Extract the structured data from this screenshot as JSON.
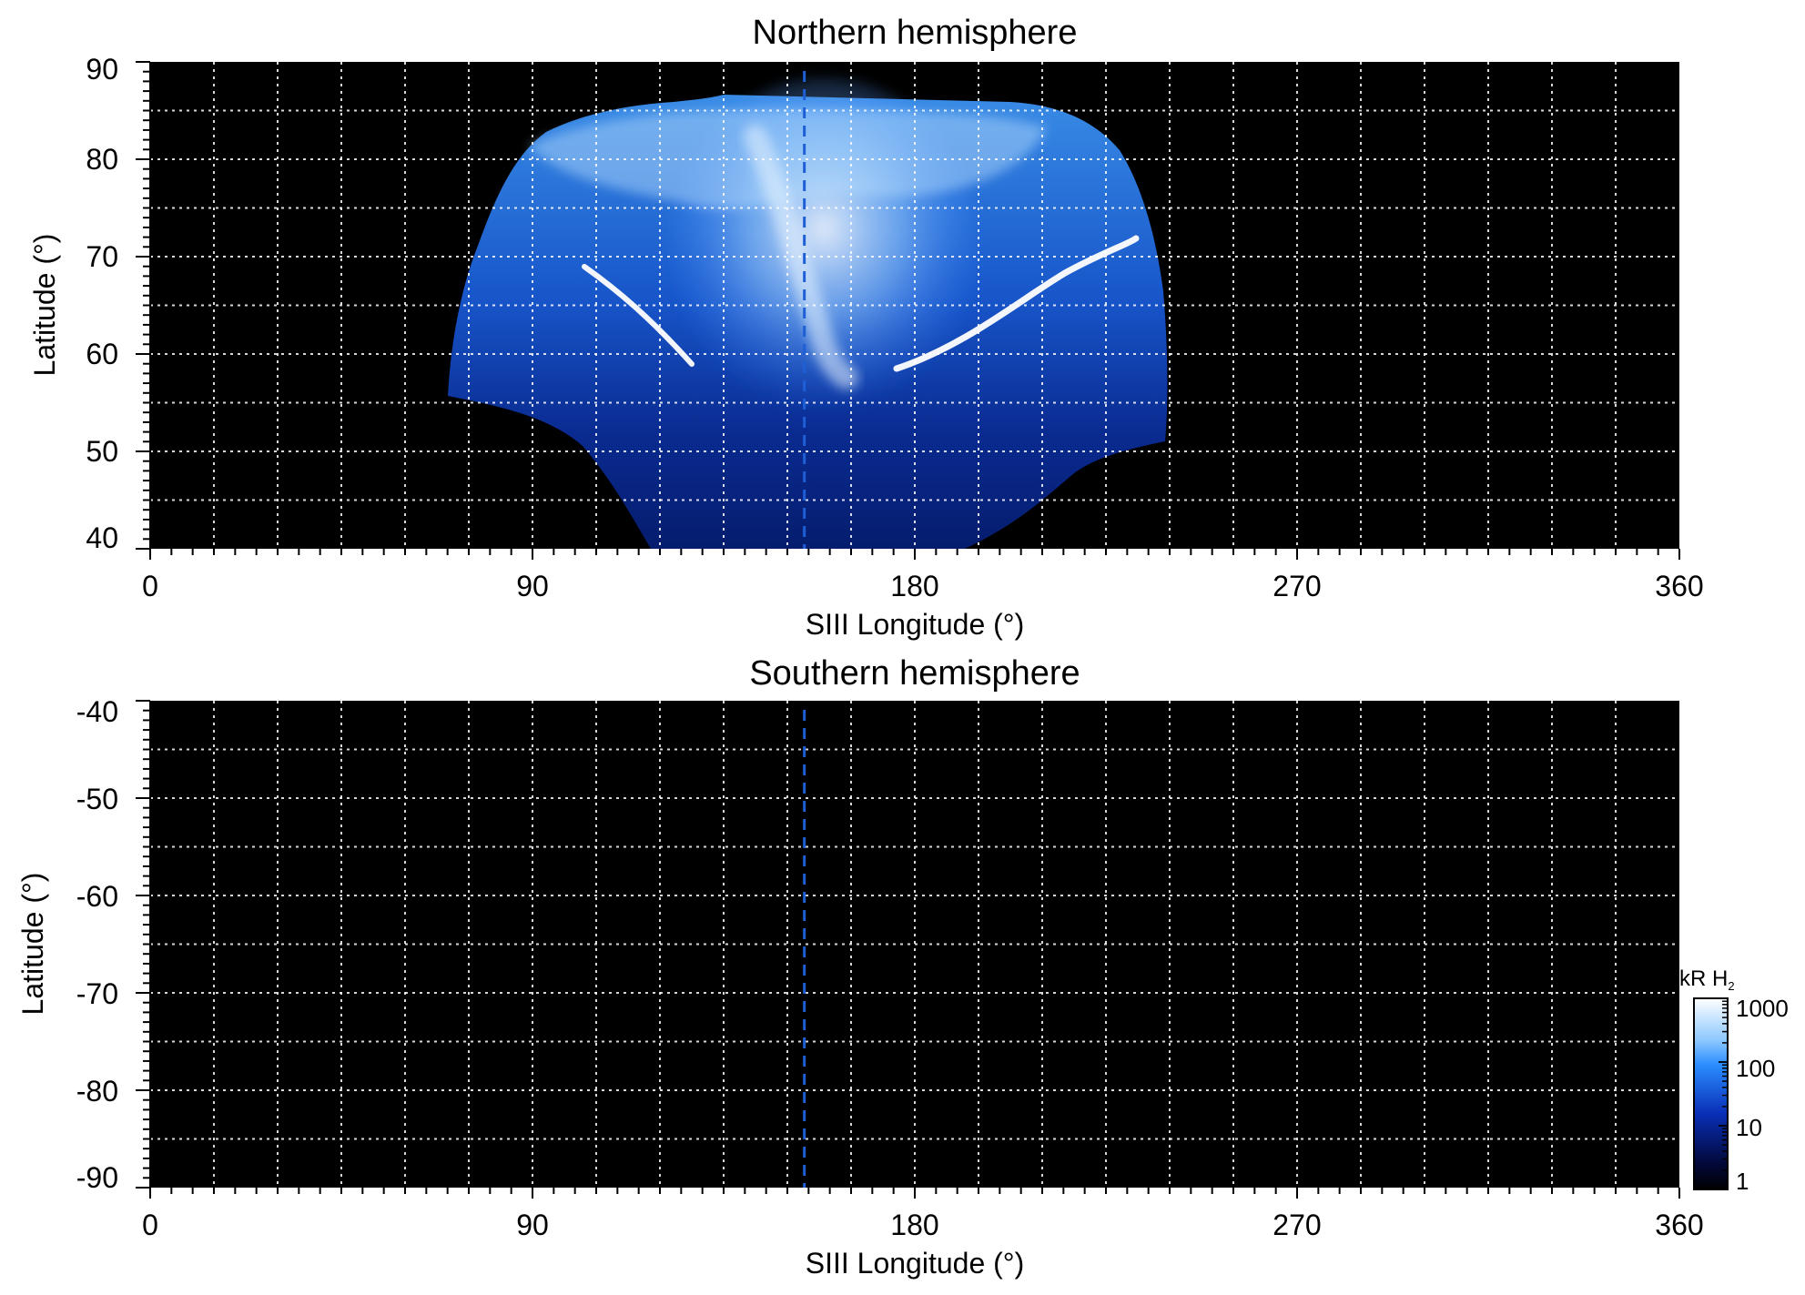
{
  "chart_data": [
    {
      "type": "heatmap",
      "title": "Northern hemisphere",
      "xlabel": "SIII Longitude (°)",
      "ylabel": "Latitude (°)",
      "xlim": [
        0,
        360
      ],
      "ylim": [
        40,
        90
      ],
      "x_ticks": [
        0,
        90,
        180,
        270,
        360
      ],
      "x_tick_labels": [
        "0",
        "90",
        "180",
        "270",
        "360"
      ],
      "y_ticks": [
        40,
        50,
        60,
        70,
        80,
        90
      ],
      "y_tick_labels": [
        "40",
        "50",
        "60",
        "70",
        "80",
        "90"
      ],
      "grid": true,
      "grid_spacing": {
        "longitude": 15,
        "latitude": 5
      },
      "reference_line_longitude": 154,
      "background": "#000000",
      "emission_region": {
        "longitude_range": [
          70,
          240
        ],
        "latitude_range": [
          40,
          87
        ],
        "brightest_features": [
          {
            "description": "main oval arc",
            "from": [
              126,
              59
            ],
            "to": [
              100,
              70
            ]
          },
          {
            "description": "main oval arc",
            "from": [
              178,
              58
            ],
            "to": [
              233,
              71
            ]
          },
          {
            "description": "bright central region",
            "longitude": [
              145,
              190
            ],
            "latitude": [
              58,
              85
            ]
          }
        ]
      }
    },
    {
      "type": "heatmap",
      "title": "Southern hemisphere",
      "xlabel": "SIII Longitude (°)",
      "ylabel": "Latitude (°)",
      "xlim": [
        0,
        360
      ],
      "ylim": [
        -90,
        -40
      ],
      "x_ticks": [
        0,
        90,
        180,
        270,
        360
      ],
      "x_tick_labels": [
        "0",
        "90",
        "180",
        "270",
        "360"
      ],
      "y_ticks": [
        -40,
        -50,
        -60,
        -70,
        -80,
        -90
      ],
      "y_tick_labels": [
        "-40",
        "-50",
        "-60",
        "-70",
        "-80",
        "-90"
      ],
      "grid": true,
      "grid_spacing": {
        "longitude": 15,
        "latitude": 5
      },
      "reference_line_longitude": 154,
      "background": "#000000",
      "emission_region": null
    }
  ],
  "colorbar": {
    "label_main": "kR H",
    "label_sub": "2",
    "scale": "log",
    "range": [
      1,
      1000
    ],
    "ticks": [
      "1000",
      "100",
      "10",
      "1"
    ],
    "colors": [
      "#ffffff",
      "#2a8cff",
      "#0a2fb8",
      "#020818",
      "#000000"
    ]
  },
  "colors": {
    "reference_line": "#1f5fd6",
    "grid": "#ffffff",
    "plot_background": "#000000"
  }
}
